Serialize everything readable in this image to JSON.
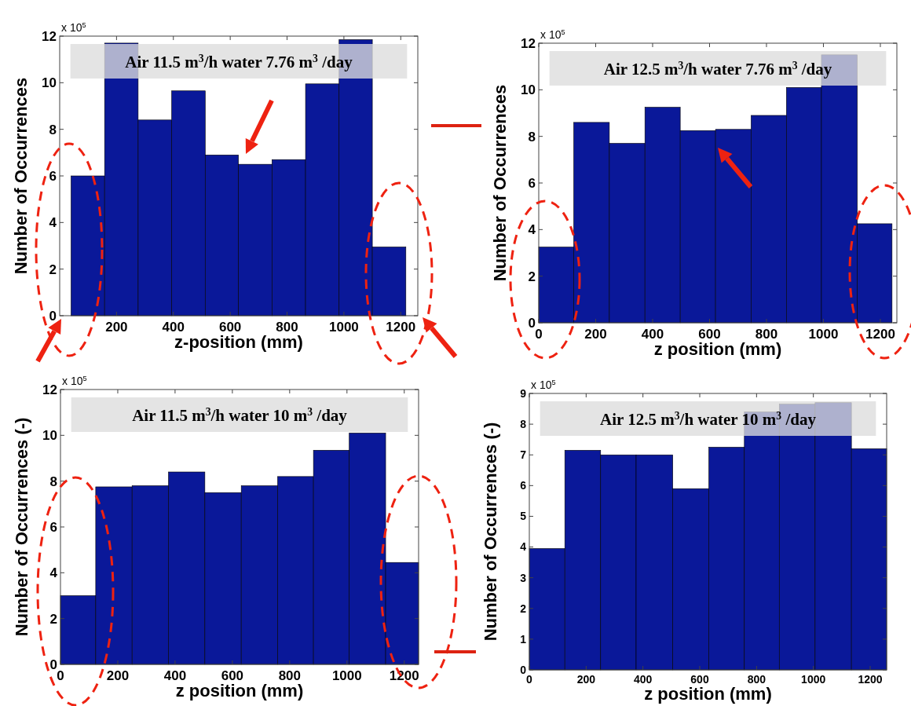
{
  "chart_data": [
    {
      "type": "histogram",
      "title": "Air 11.5 m$^{3}$/h water 7.76 m$^{3}$ /day",
      "xlabel": "z-position (mm)",
      "ylabel": "Number of Occurrences",
      "annotations": [
        "x 10$^{5}$"
      ],
      "bins": [
        40,
        158,
        276,
        394,
        512,
        629,
        747,
        865,
        983,
        1100,
        1218
      ],
      "values": [
        6.0,
        11.7,
        8.4,
        9.65,
        6.9,
        6.5,
        6.7,
        9.95,
        11.85,
        2.95
      ],
      "color": "#0a1899",
      "xlim": [
        0,
        1260
      ],
      "xticks": [
        200,
        400,
        600,
        800,
        1000,
        1200
      ],
      "ylim": [
        0,
        12
      ],
      "yticks": [
        0,
        2,
        4,
        6,
        8,
        10,
        12
      ],
      "grid": false
    },
    {
      "type": "histogram",
      "title": "Air 12.5 m$^{3}$/h water 7.76 m$^{3}$ /day",
      "xlabel": "z position (mm)",
      "ylabel": "Number of Occurrences",
      "annotations": [
        "x 10$^{5}$"
      ],
      "bins": [
        0,
        123,
        248,
        373,
        497,
        621,
        746,
        870,
        993,
        1119,
        1241
      ],
      "values": [
        3.25,
        8.6,
        7.7,
        9.25,
        8.25,
        8.3,
        8.9,
        10.1,
        11.5,
        4.25
      ],
      "color": "#0a1899",
      "xlim": [
        0,
        1258
      ],
      "xticks": [
        0,
        200,
        400,
        600,
        800,
        1000,
        1200
      ],
      "ylim": [
        0,
        12
      ],
      "yticks": [
        0,
        2,
        4,
        6,
        8,
        10,
        12
      ],
      "grid": false
    },
    {
      "type": "histogram",
      "title": "Air 11.5 m$^{3}$/h water 10 m$^{3}$ /day",
      "xlabel": "z position (mm)",
      "ylabel": "Number of Occurrences (-)",
      "annotations": [
        "x 10$^{5}$"
      ],
      "bins": [
        0,
        123,
        250,
        377,
        504,
        631,
        758,
        883,
        1008,
        1135,
        1250
      ],
      "values": [
        3.0,
        7.75,
        7.8,
        8.4,
        7.5,
        7.8,
        8.2,
        9.35,
        10.1,
        4.45
      ],
      "color": "#0a1899",
      "xlim": [
        0,
        1250
      ],
      "xticks": [
        0,
        200,
        400,
        600,
        800,
        1000,
        1200
      ],
      "ylim": [
        0,
        12
      ],
      "yticks": [
        0,
        2,
        4,
        6,
        8,
        10,
        12
      ],
      "grid": false
    },
    {
      "type": "histogram",
      "title": "Air 12.5 m$^{3}$/h water 10 m$^{3}$ /day",
      "xlabel": "z position (mm)",
      "ylabel": "Number of Occurrences (-)",
      "annotations": [
        "x 10$^{5}$"
      ],
      "bins": [
        0,
        125,
        251,
        376,
        505,
        632,
        757,
        880,
        1006,
        1134,
        1258
      ],
      "values": [
        3.95,
        7.15,
        7.0,
        7.0,
        5.9,
        7.25,
        8.4,
        8.65,
        8.7,
        7.2
      ],
      "color": "#0a1899",
      "xlim": [
        0,
        1258
      ],
      "xticks": [
        0,
        200,
        400,
        600,
        800,
        1000,
        1200
      ],
      "ylim": [
        0,
        9
      ],
      "yticks": [
        0,
        1,
        2,
        3,
        4,
        5,
        6,
        7,
        8,
        9
      ],
      "grid": false
    }
  ]
}
